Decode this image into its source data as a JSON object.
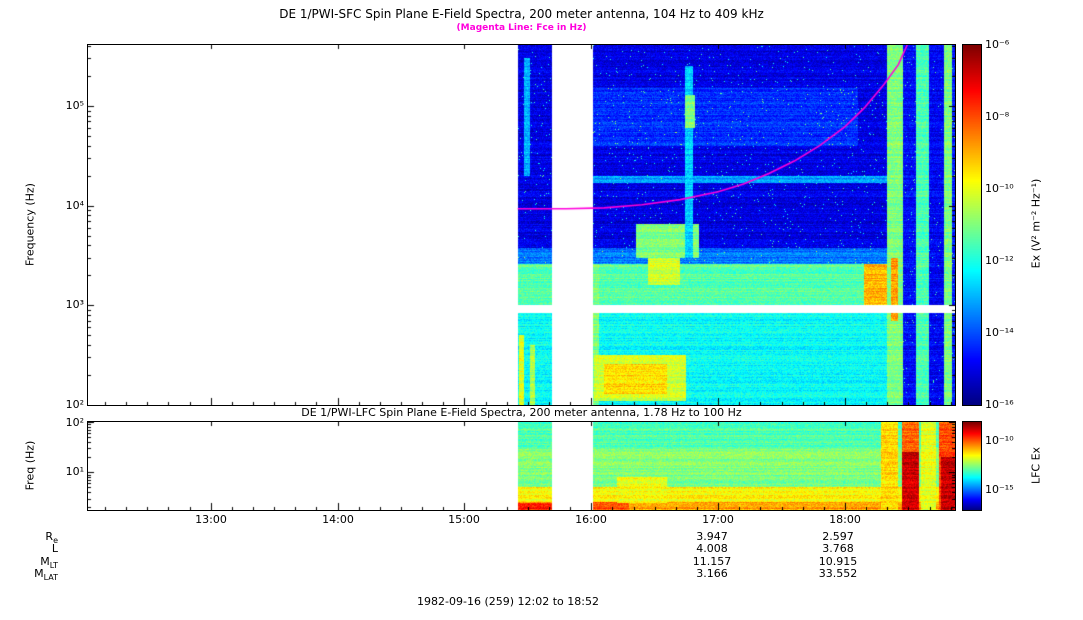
{
  "caption": "1982-09-16 (259) 12:02 to 18:52",
  "colors": {
    "magenta": "#ff00dd",
    "background": "#ffffff",
    "frame": "#000000"
  },
  "xaxis": {
    "tick_labels": [
      "13:00",
      "14:00",
      "15:00",
      "16:00",
      "17:00",
      "18:00"
    ],
    "tick_hours": [
      13,
      14,
      15,
      16,
      17,
      18
    ],
    "range_hours": [
      12.0333,
      18.8667
    ]
  },
  "ephemeris": {
    "value_hours": [
      17.0,
      18.0
    ],
    "rows": [
      {
        "label": "R",
        "sub": "e",
        "values": [
          "3.947",
          "2.597"
        ]
      },
      {
        "label": "L",
        "sub": "",
        "values": [
          "4.008",
          "3.768"
        ]
      },
      {
        "label": "M",
        "sub": "LT",
        "values": [
          "11.157",
          "10.915"
        ]
      },
      {
        "label": "M",
        "sub": "LAT",
        "values": [
          "3.166",
          "33.552"
        ]
      }
    ]
  },
  "chart_data": [
    {
      "id": "sfc",
      "type": "heatmap",
      "title": "DE 1/PWI-SFC  Spin Plane E-Field Spectra, 200 meter antenna, 104 Hz to 409 kHz",
      "subtitle": "(Magenta Line: Fce in Hz)",
      "ylabel": "Frequency (Hz)",
      "yticks": [
        "10⁵",
        "10⁴",
        "10³",
        "10²"
      ],
      "ylim_hz": [
        100,
        409000
      ],
      "log_y": true,
      "xlim_hours": [
        12.0333,
        18.8667
      ],
      "data_start_hour": 15.42,
      "gap_hours": [
        15.69,
        16.01
      ],
      "white_band_hz": [
        830,
        1000
      ],
      "colorbar": {
        "label": "Ex (V² m⁻² Hz⁻¹)",
        "ticks": [
          "10⁻⁶",
          "10⁻⁸",
          "10⁻¹⁰",
          "10⁻¹²",
          "10⁻¹⁴",
          "10⁻¹⁶"
        ],
        "range_log10": [
          -16,
          -6
        ]
      },
      "fce_line_hour_hz": [
        [
          15.42,
          9300
        ],
        [
          15.8,
          9300
        ],
        [
          16.1,
          9500
        ],
        [
          16.4,
          10200
        ],
        [
          16.7,
          11500
        ],
        [
          17.0,
          13800
        ],
        [
          17.2,
          16500
        ],
        [
          17.4,
          21000
        ],
        [
          17.6,
          28000
        ],
        [
          17.8,
          40000
        ],
        [
          18.0,
          62000
        ],
        [
          18.15,
          95000
        ],
        [
          18.3,
          160000
        ],
        [
          18.42,
          260000
        ],
        [
          18.49,
          409000
        ]
      ],
      "base_value": 0.1,
      "seed": 11,
      "features": [
        {
          "t": [
            15.42,
            18.87
          ],
          "f": [
            100,
            870
          ],
          "v": 0.38
        },
        {
          "t": [
            15.42,
            18.87
          ],
          "f": [
            2600,
            3800
          ],
          "v": 0.24
        },
        {
          "t": [
            15.42,
            18.87
          ],
          "f": [
            1000,
            2600
          ],
          "v": 0.46
        },
        {
          "t": [
            16.01,
            18.1
          ],
          "f": [
            40000,
            150000
          ],
          "v": 0.17
        },
        {
          "t": [
            15.47,
            15.52
          ],
          "f": [
            20000,
            300000
          ],
          "v": 0.3
        },
        {
          "t": [
            15.43,
            15.47
          ],
          "f": [
            100,
            500
          ],
          "v": 0.6
        },
        {
          "t": [
            15.52,
            15.56
          ],
          "f": [
            100,
            400
          ],
          "v": 0.55
        },
        {
          "t": [
            16.01,
            16.06
          ],
          "f": [
            100,
            2600
          ],
          "v": 0.5
        },
        {
          "t": [
            16.02,
            16.75
          ],
          "f": [
            110,
            320
          ],
          "v": 0.58
        },
        {
          "t": [
            16.1,
            16.6
          ],
          "f": [
            130,
            260
          ],
          "v": 0.66
        },
        {
          "t": [
            16.35,
            16.85
          ],
          "f": [
            3000,
            6500
          ],
          "v": 0.5
        },
        {
          "t": [
            16.45,
            16.7
          ],
          "f": [
            1600,
            3000
          ],
          "v": 0.58
        },
        {
          "t": [
            16.01,
            18.87
          ],
          "f": [
            17000,
            20000
          ],
          "v": 0.28
        },
        {
          "t": [
            16.74,
            16.8
          ],
          "f": [
            3000,
            250000
          ],
          "v": 0.33
        },
        {
          "t": [
            16.74,
            16.82
          ],
          "f": [
            60000,
            130000
          ],
          "v": 0.5
        },
        {
          "t": [
            18.15,
            18.45
          ],
          "f": [
            950,
            2600
          ],
          "v": 0.7
        },
        {
          "t": [
            18.33,
            18.46
          ],
          "f": [
            100,
            409000
          ],
          "v": 0.5
        },
        {
          "t": [
            18.36,
            18.42
          ],
          "f": [
            700,
            3000
          ],
          "v": 0.72
        },
        {
          "t": [
            18.46,
            18.56
          ],
          "f": [
            100,
            409000
          ],
          "v": 0.13
        },
        {
          "t": [
            18.56,
            18.66
          ],
          "f": [
            100,
            409000
          ],
          "v": 0.45
        },
        {
          "t": [
            18.66,
            18.78
          ],
          "f": [
            100,
            409000
          ],
          "v": 0.12
        },
        {
          "t": [
            18.78,
            18.84
          ],
          "f": [
            100,
            409000
          ],
          "v": 0.5
        },
        {
          "t": [
            18.84,
            18.87
          ],
          "f": [
            100,
            409000
          ],
          "v": 0.15
        }
      ]
    },
    {
      "id": "lfc",
      "type": "heatmap",
      "title": "DE 1/PWI-LFC  Spin Plane E-Field Spectra, 200 meter antenna, 1.78 Hz to 100 Hz",
      "ylabel": "Freq (Hz)",
      "yticks": [
        "10²",
        "10¹"
      ],
      "ylim_hz": [
        1.78,
        100
      ],
      "log_y": true,
      "xlim_hours": [
        12.0333,
        18.8667
      ],
      "data_start_hour": 15.42,
      "gap_hours": [
        15.69,
        16.01
      ],
      "colorbar": {
        "label": "LFC Ex",
        "ticks": [
          "10⁻¹⁰",
          "10⁻¹⁵"
        ],
        "range_log10": [
          -17,
          -8
        ]
      },
      "base_value": 0.5,
      "seed": 23,
      "features": [
        {
          "t": [
            15.42,
            18.87
          ],
          "f": [
            30,
            100
          ],
          "v": 0.45
        },
        {
          "t": [
            15.42,
            18.87
          ],
          "f": [
            1.78,
            5
          ],
          "v": 0.63
        },
        {
          "t": [
            15.42,
            18.87
          ],
          "f": [
            1.78,
            2.6
          ],
          "v": 0.72
        },
        {
          "t": [
            15.42,
            15.69
          ],
          "f": [
            1.78,
            2.4
          ],
          "v": 0.86
        },
        {
          "t": [
            16.01,
            16.3
          ],
          "f": [
            1.78,
            2.6
          ],
          "v": 0.8
        },
        {
          "t": [
            16.2,
            16.6
          ],
          "f": [
            2.5,
            8
          ],
          "v": 0.62
        },
        {
          "t": [
            18.28,
            18.42
          ],
          "f": [
            1.78,
            100
          ],
          "v": 0.66
        },
        {
          "t": [
            18.45,
            18.58
          ],
          "f": [
            1.78,
            100
          ],
          "v": 0.78
        },
        {
          "t": [
            18.45,
            18.58
          ],
          "f": [
            1.78,
            25
          ],
          "v": 0.92
        },
        {
          "t": [
            18.6,
            18.72
          ],
          "f": [
            1.78,
            100
          ],
          "v": 0.6
        },
        {
          "t": [
            18.74,
            18.87
          ],
          "f": [
            1.78,
            100
          ],
          "v": 0.8
        },
        {
          "t": [
            18.76,
            18.87
          ],
          "f": [
            1.78,
            20
          ],
          "v": 0.93
        }
      ]
    }
  ]
}
